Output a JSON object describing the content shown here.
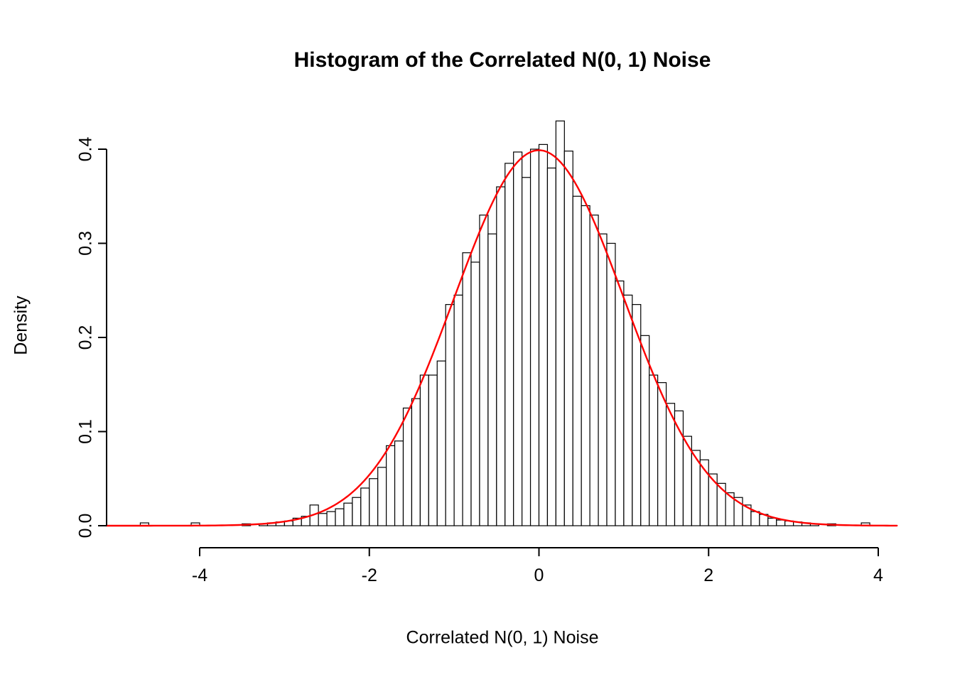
{
  "chart_data": {
    "type": "bar",
    "subtype": "histogram",
    "title": "Histogram of the Correlated N(0, 1) Noise",
    "xlabel": "Correlated N(0, 1) Noise",
    "ylabel": "Density",
    "xlim": [
      -5.1,
      4.25
    ],
    "ylim": [
      0.0,
      0.43
    ],
    "grid": false,
    "x_ticks": {
      "values": [
        -4,
        -2,
        0,
        2,
        4
      ],
      "labels": [
        "-4",
        "-2",
        "0",
        "2",
        "4"
      ]
    },
    "y_ticks": {
      "values": [
        0.0,
        0.1,
        0.2,
        0.3,
        0.4
      ],
      "labels": [
        "0.0",
        "0.1",
        "0.2",
        "0.3",
        "0.4"
      ]
    },
    "bins": {
      "start": -4.7,
      "width": 0.1,
      "densities": [
        0.003,
        0,
        0,
        0,
        0,
        0,
        0.003,
        0,
        0,
        0,
        0,
        0,
        0.002,
        0,
        0.002,
        0.003,
        0.004,
        0.005,
        0.008,
        0.01,
        0.022,
        0.013,
        0.015,
        0.018,
        0.024,
        0.03,
        0.04,
        0.05,
        0.062,
        0.085,
        0.09,
        0.125,
        0.135,
        0.16,
        0.16,
        0.175,
        0.235,
        0.245,
        0.29,
        0.28,
        0.33,
        0.31,
        0.36,
        0.385,
        0.397,
        0.37,
        0.4,
        0.405,
        0.38,
        0.43,
        0.398,
        0.35,
        0.34,
        0.33,
        0.31,
        0.3,
        0.26,
        0.245,
        0.235,
        0.202,
        0.16,
        0.152,
        0.13,
        0.122,
        0.095,
        0.08,
        0.07,
        0.055,
        0.045,
        0.035,
        0.03,
        0.022,
        0.015,
        0.012,
        0.008,
        0.006,
        0.005,
        0.004,
        0.003,
        0.002,
        0,
        0.002,
        0,
        0,
        0,
        0.003
      ],
      "bar_fill": "#ffffff",
      "bar_stroke": "#000000"
    },
    "curve": {
      "name": "standard normal density",
      "mean": 0,
      "sd": 1,
      "color": "#ff0000"
    },
    "axis_color": "#000000"
  }
}
